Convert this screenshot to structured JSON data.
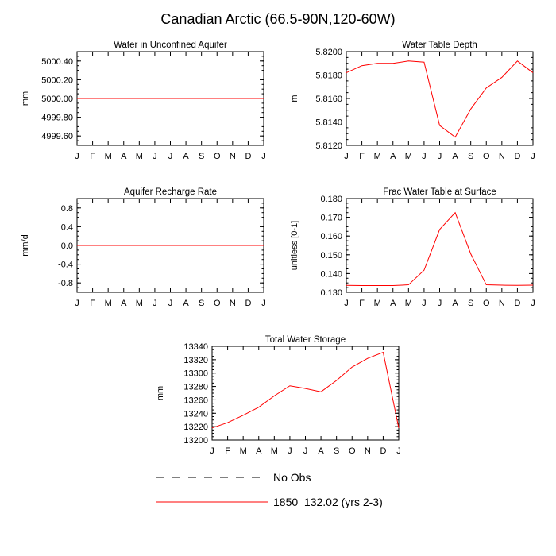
{
  "figure_title": "Canadian Arctic (66.5-90N,120-60W)",
  "legend": {
    "entries": [
      {
        "label": "No Obs",
        "style": "dashed",
        "color": "#000000"
      },
      {
        "label": "1850_132.02 (yrs 2-3)",
        "style": "solid",
        "color": "#ff0000"
      }
    ]
  },
  "colors": {
    "series": "#ff0000",
    "axis": "#000000"
  },
  "chart_data": [
    {
      "type": "line",
      "title": "Water in Unconfined Aquifer",
      "ylabel": "mm",
      "xlabel": "",
      "categories": [
        "J",
        "F",
        "M",
        "A",
        "M",
        "J",
        "J",
        "A",
        "S",
        "O",
        "N",
        "D",
        "J"
      ],
      "ylim": [
        4999.5,
        5000.5
      ],
      "yticks": [
        4999.6,
        4999.8,
        5000.0,
        5000.2,
        5000.4
      ],
      "ytick_labels": [
        "4999.60",
        "4999.80",
        "5000.00",
        "5000.20",
        "5000.40"
      ],
      "series": [
        {
          "name": "1850_132.02 (yrs 2-3)",
          "values": [
            5000,
            5000,
            5000,
            5000,
            5000,
            5000,
            5000,
            5000,
            5000,
            5000,
            5000,
            5000,
            5000
          ]
        }
      ]
    },
    {
      "type": "line",
      "title": "Water Table Depth",
      "ylabel": "m",
      "xlabel": "",
      "categories": [
        "J",
        "F",
        "M",
        "A",
        "M",
        "J",
        "J",
        "A",
        "S",
        "O",
        "N",
        "D",
        "J"
      ],
      "ylim": [
        5.812,
        5.82
      ],
      "yticks": [
        5.812,
        5.814,
        5.816,
        5.818,
        5.82
      ],
      "ytick_labels": [
        "5.8120",
        "5.8140",
        "5.8160",
        "5.8180",
        "5.8200"
      ],
      "series": [
        {
          "name": "1850_132.02 (yrs 2-3)",
          "values": [
            5.8182,
            5.8188,
            5.819,
            5.819,
            5.8192,
            5.8191,
            5.8137,
            5.8127,
            5.8151,
            5.8169,
            5.8178,
            5.8192,
            5.8182
          ]
        }
      ]
    },
    {
      "type": "line",
      "title": "Aquifer Recharge Rate",
      "ylabel": "mm/d",
      "xlabel": "",
      "categories": [
        "J",
        "F",
        "M",
        "A",
        "M",
        "J",
        "J",
        "A",
        "S",
        "O",
        "N",
        "D",
        "J"
      ],
      "ylim": [
        -1.0,
        1.0
      ],
      "yticks": [
        -0.8,
        -0.4,
        0.0,
        0.4,
        0.8
      ],
      "ytick_labels": [
        "-0.8",
        "-0.4",
        "0.0",
        "0.4",
        "0.8"
      ],
      "series": [
        {
          "name": "1850_132.02 (yrs 2-3)",
          "values": [
            0,
            0,
            0,
            0,
            0,
            0,
            0,
            0,
            0,
            0,
            0,
            0,
            0
          ]
        }
      ]
    },
    {
      "type": "line",
      "title": "Frac Water Table at Surface",
      "ylabel": "unitless [0-1]",
      "xlabel": "",
      "categories": [
        "J",
        "F",
        "M",
        "A",
        "M",
        "J",
        "J",
        "A",
        "S",
        "O",
        "N",
        "D",
        "J"
      ],
      "ylim": [
        0.13,
        0.18
      ],
      "yticks": [
        0.13,
        0.14,
        0.15,
        0.16,
        0.17,
        0.18
      ],
      "ytick_labels": [
        "0.130",
        "0.140",
        "0.150",
        "0.160",
        "0.170",
        "0.180"
      ],
      "series": [
        {
          "name": "1850_132.02 (yrs 2-3)",
          "values": [
            0.1337,
            0.1336,
            0.1336,
            0.1336,
            0.134,
            0.1418,
            0.1635,
            0.1725,
            0.1505,
            0.134,
            0.1338,
            0.1337,
            0.1338
          ]
        }
      ]
    },
    {
      "type": "line",
      "title": "Total Water Storage",
      "ylabel": "mm",
      "xlabel": "",
      "categories": [
        "J",
        "F",
        "M",
        "A",
        "M",
        "J",
        "J",
        "A",
        "S",
        "O",
        "N",
        "D",
        "J"
      ],
      "ylim": [
        13200,
        13340
      ],
      "yticks": [
        13200,
        13220,
        13240,
        13260,
        13280,
        13300,
        13320,
        13340
      ],
      "ytick_labels": [
        "13200",
        "13220",
        "13240",
        "13260",
        "13280",
        "13300",
        "13320",
        "13340"
      ],
      "series": [
        {
          "name": "1850_132.02 (yrs 2-3)",
          "values": [
            13218,
            13226,
            13237,
            13249,
            13266,
            13281,
            13277,
            13272,
            13289,
            13309,
            13322,
            13331,
            13218
          ]
        }
      ]
    }
  ]
}
